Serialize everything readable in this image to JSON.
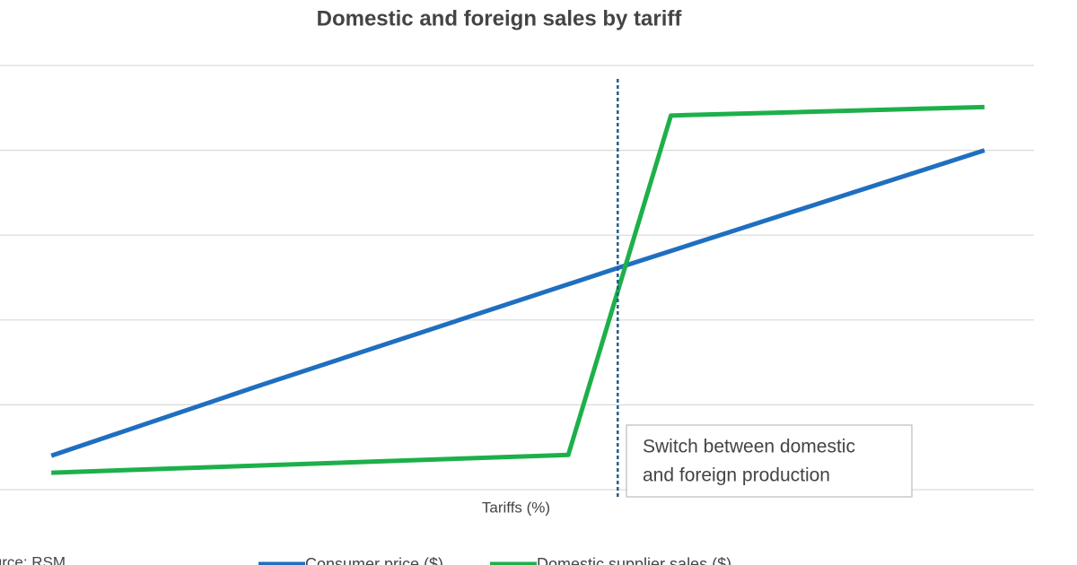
{
  "chart_data": {
    "type": "line",
    "title": "Domestic and foreign sales by tariff",
    "x_label": "Tariffs (%)",
    "source": "Source: RSM",
    "xlim": [
      -5.5,
      105.3
    ],
    "ylim": [
      0,
      5
    ],
    "yticks": [
      0,
      1,
      2,
      3,
      4,
      5
    ],
    "grid": true,
    "legend": "bottom",
    "series": [
      {
        "name": "Consumer price ($)",
        "color": "#1f6fc0",
        "x": [
          0,
          22.4,
          60.9,
          100
        ],
        "values": [
          0.4,
          1.23,
          2.62,
          4.0
        ]
      },
      {
        "name": "Domestic supplier sales ($)",
        "color": "#1db04a",
        "x": [
          0,
          55.4,
          66.4,
          100
        ],
        "values": [
          0.2,
          0.41,
          4.41,
          4.51
        ]
      }
    ],
    "annotation": {
      "x": 60.7,
      "color": "#1f5f8a",
      "lines": [
        "Switch between domestic",
        "and foreign production"
      ]
    }
  }
}
